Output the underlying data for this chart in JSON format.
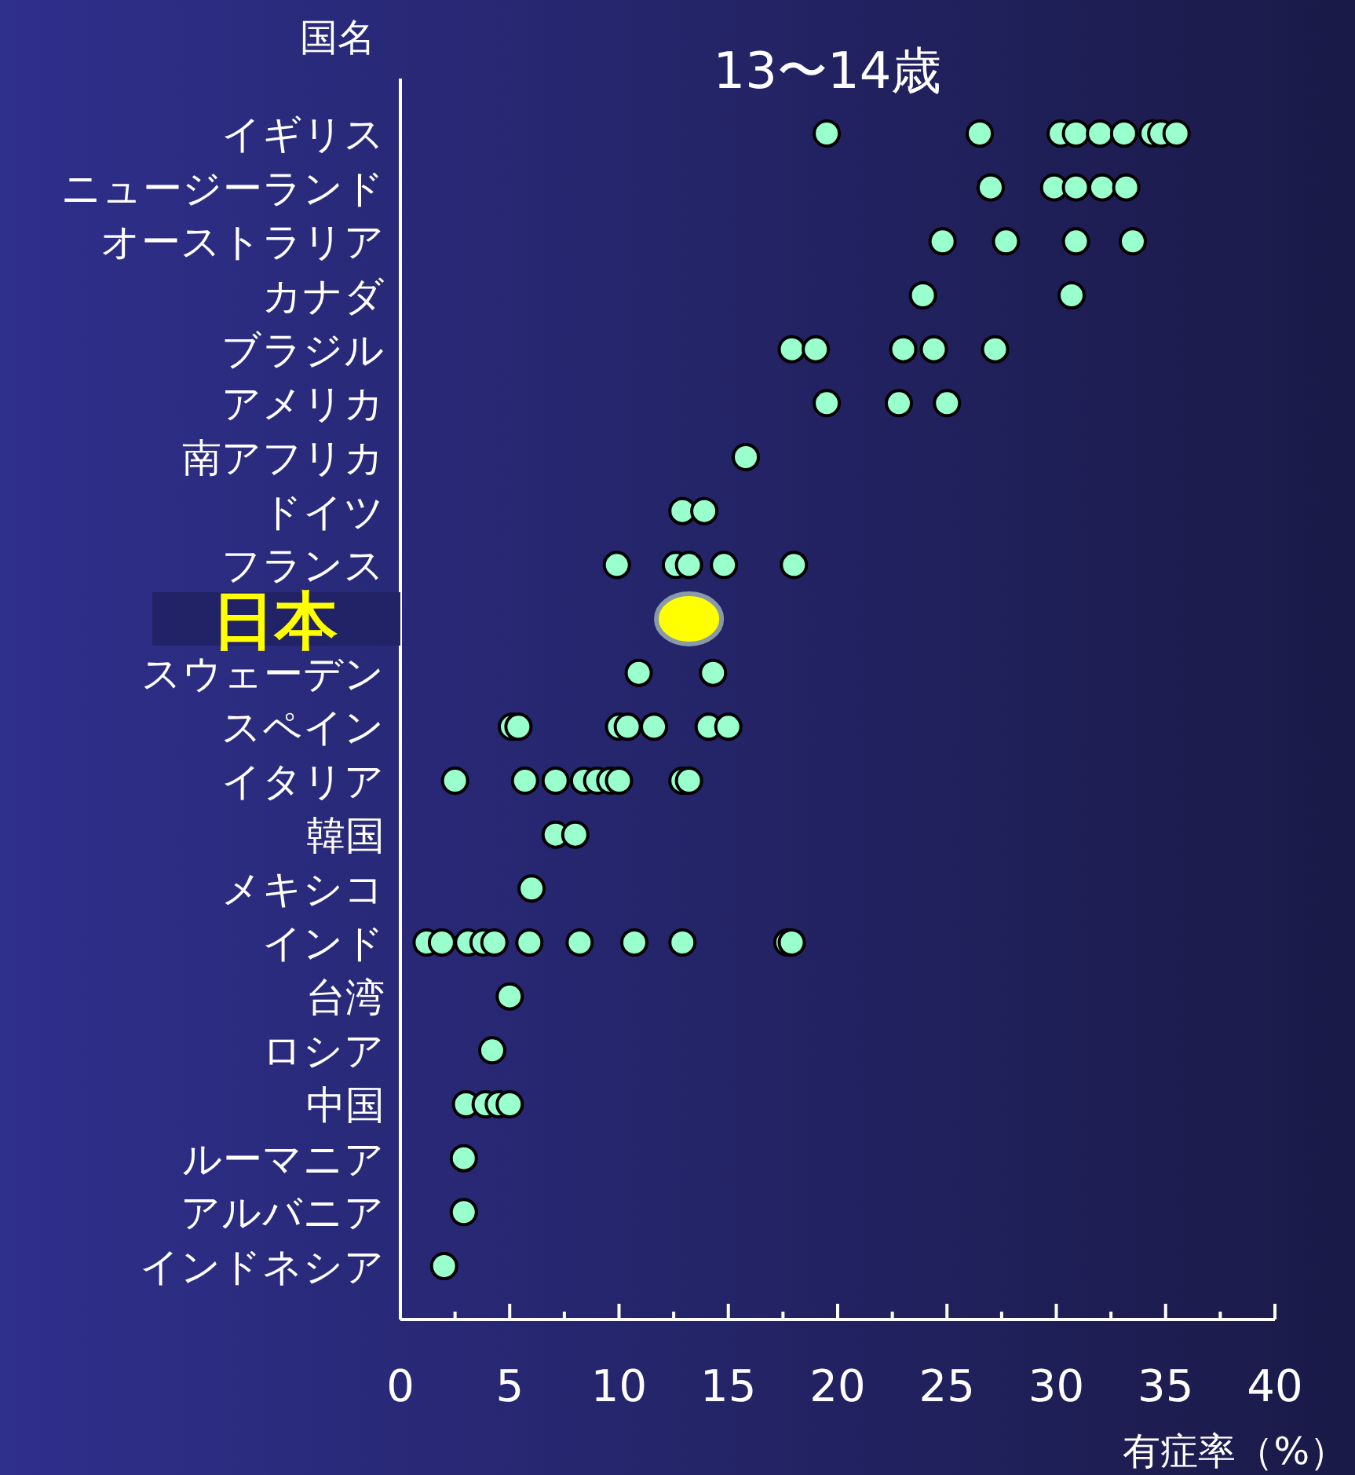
{
  "chart_data": {
    "type": "scatter",
    "title": "13〜14歳",
    "ylabel": "国名",
    "xlabel": "有症率（%）",
    "orientation": "horizontal",
    "marker": "circle",
    "grid": false,
    "categories": [
      "イギリス",
      "ニュージーランド",
      "オーストラリア",
      "カナダ",
      "ブラジル",
      "アメリカ",
      "南アフリカ",
      "ドイツ",
      "フランス",
      "日本",
      "スウェーデン",
      "スペイン",
      "イタリア",
      "韓国",
      "メキシコ",
      "インド",
      "台湾",
      "ロシア",
      "中国",
      "ルーマニア",
      "アルバニア",
      "インドネシア"
    ],
    "xlim": [
      0,
      40
    ],
    "xticks": [
      0,
      {
        "value": 2.5,
        "label": null
      },
      5,
      {
        "value": 7.5,
        "label": null
      },
      10,
      {
        "value": 12.5,
        "label": null
      },
      15,
      {
        "value": 17.5,
        "label": null
      },
      20,
      {
        "value": 22.5,
        "label": null
      },
      25,
      {
        "value": 27.5,
        "label": null
      },
      30,
      {
        "value": 32.5,
        "label": null
      },
      35,
      {
        "value": 37.5,
        "label": null
      },
      40
    ],
    "series": [
      {
        "color": "#99ffcc",
        "x": [
          "イギリス",
          "イギリス",
          "イギリス",
          "イギリス",
          "イギリス",
          "イギリス",
          "イギリス",
          "イギリス",
          "イギリス",
          "ニュージーランド",
          "ニュージーランド",
          "ニュージーランド",
          "ニュージーランド",
          "ニュージーランド",
          "オーストラリア",
          "オーストラリア",
          "オーストラリア",
          "オーストラリア",
          "カナダ",
          "カナダ",
          "ブラジル",
          "ブラジル",
          "ブラジル",
          "ブラジル",
          "ブラジル",
          "アメリカ",
          "アメリカ",
          "アメリカ",
          "南アフリカ",
          "ドイツ",
          "ドイツ",
          "フランス",
          "フランス",
          "フランス",
          "フランス",
          "フランス",
          "スウェーデン",
          "スウェーデン",
          "スペイン",
          "スペイン",
          "スペイン",
          "スペイン",
          "スペイン",
          "スペイン",
          "スペイン",
          "イタリア",
          "イタリア",
          "イタリア",
          "イタリア",
          "イタリア",
          "イタリア",
          "イタリア",
          "イタリア",
          "イタリア",
          "韓国",
          "韓国",
          "メキシコ",
          "インド",
          "インド",
          "インド",
          "インド",
          "インド",
          "インド",
          "インド",
          "インド",
          "インド",
          "インド",
          "インド",
          "台湾",
          "ロシア",
          "中国",
          "中国",
          "中国",
          "中国",
          "ルーマニア",
          "アルバニア",
          "インドネシア"
        ],
        "values": [
          19.5,
          26.5,
          30.2,
          30.9,
          32.0,
          33.1,
          34.4,
          34.8,
          35.5,
          27.0,
          29.9,
          30.9,
          32.1,
          33.2,
          24.8,
          27.7,
          30.9,
          33.5,
          23.9,
          30.7,
          17.9,
          19.0,
          23.0,
          24.4,
          27.2,
          19.5,
          22.8,
          25.0,
          15.8,
          12.9,
          13.9,
          9.9,
          12.6,
          13.2,
          14.8,
          18.0,
          10.9,
          14.3,
          5.1,
          5.4,
          10.0,
          10.4,
          11.6,
          14.1,
          15.0,
          2.5,
          5.7,
          7.1,
          8.4,
          9.0,
          9.6,
          10.0,
          12.9,
          13.2,
          7.1,
          8.0,
          6.0,
          1.2,
          1.9,
          3.1,
          3.8,
          4.3,
          5.9,
          8.2,
          10.7,
          12.9,
          17.7,
          17.9,
          5.0,
          4.2,
          3.0,
          3.9,
          4.5,
          5.0,
          2.9,
          2.9,
          2.0
        ]
      },
      {
        "color": "#ffff00",
        "x": [
          "日本"
        ],
        "values": [
          13.2
        ]
      }
    ]
  }
}
